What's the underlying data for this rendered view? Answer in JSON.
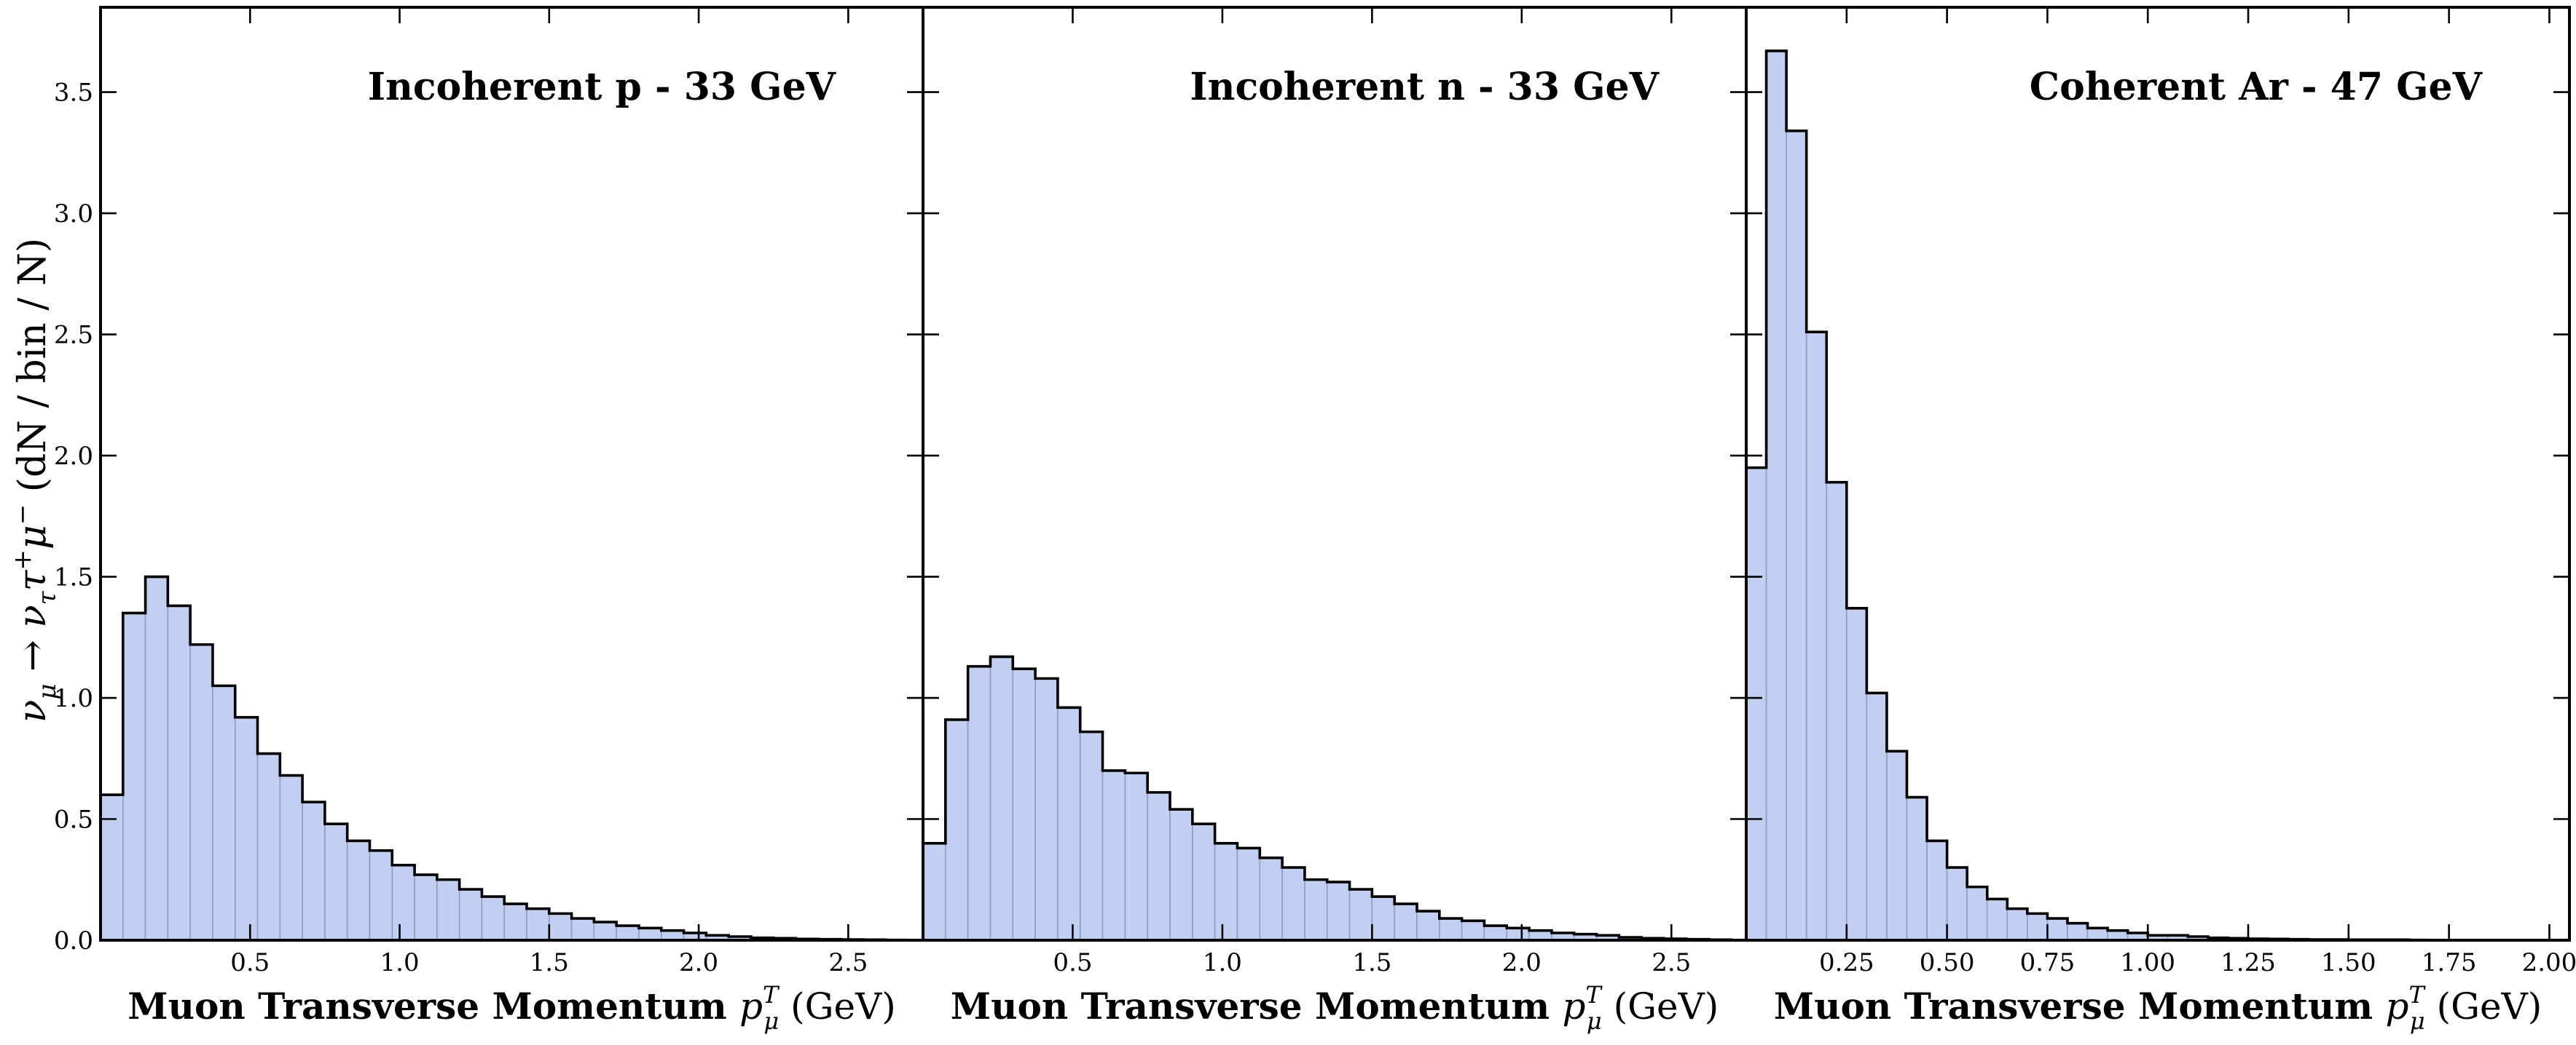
{
  "figure": {
    "ylabel_prefix": "ν",
    "ylabel_mu": "μ",
    "ylabel_arrow": " → ν",
    "ylabel_tau": "τ",
    "ylabel_tau_sup": "+",
    "ylabel_mu2": "μ",
    "ylabel_mu2_sup": "−",
    "ylabel_suffix": " (dN / bin / N)",
    "xlabel_bold": "Muon Transverse Momentum ",
    "xlabel_p": "p",
    "xlabel_sup": "T",
    "xlabel_sub": "μ",
    "xlabel_unit": " (GeV)"
  },
  "chart_data": [
    {
      "type": "bar",
      "title": "Incoherent p - 33 GeV",
      "xlabel": "Muon Transverse Momentum p_μ^T (GeV)",
      "ylabel": "ν_μ → ν_τ τ^+ μ^- (dN / bin / N)",
      "xlim": [
        0.0,
        2.75
      ],
      "ylim": [
        0.0,
        3.85
      ],
      "bin_width": 0.075,
      "x_ticks": [
        0.5,
        1.0,
        1.5,
        2.0,
        2.5
      ],
      "x_tick_labels": [
        "0.5",
        "1.0",
        "1.5",
        "2.0",
        "2.5"
      ],
      "y_ticks": [
        0.0,
        0.5,
        1.0,
        1.5,
        2.0,
        2.5,
        3.0,
        3.5
      ],
      "y_tick_labels": [
        "0.0",
        "0.5",
        "1.0",
        "1.5",
        "2.0",
        "2.5",
        "3.0",
        "3.5"
      ],
      "values": [
        0.6,
        1.35,
        1.5,
        1.38,
        1.22,
        1.05,
        0.92,
        0.77,
        0.68,
        0.57,
        0.48,
        0.41,
        0.37,
        0.31,
        0.27,
        0.25,
        0.21,
        0.18,
        0.15,
        0.13,
        0.11,
        0.09,
        0.075,
        0.06,
        0.05,
        0.04,
        0.03,
        0.02,
        0.015,
        0.01,
        0.008,
        0.005,
        0.004,
        0.003,
        0.002,
        0.001
      ]
    },
    {
      "type": "bar",
      "title": "Incoherent n - 33 GeV",
      "xlabel": "Muon Transverse Momentum p_μ^T (GeV)",
      "xlim": [
        0.0,
        2.75
      ],
      "ylim": [
        0.0,
        3.85
      ],
      "bin_width": 0.075,
      "x_ticks": [
        0.5,
        1.0,
        1.5,
        2.0,
        2.5
      ],
      "x_tick_labels": [
        "0.5",
        "1.0",
        "1.5",
        "2.0",
        "2.5"
      ],
      "y_ticks": [
        0.0,
        0.5,
        1.0,
        1.5,
        2.0,
        2.5,
        3.0,
        3.5
      ],
      "values": [
        0.4,
        0.91,
        1.13,
        1.17,
        1.12,
        1.08,
        0.96,
        0.86,
        0.7,
        0.69,
        0.61,
        0.54,
        0.48,
        0.4,
        0.38,
        0.34,
        0.3,
        0.25,
        0.24,
        0.21,
        0.18,
        0.15,
        0.12,
        0.09,
        0.08,
        0.06,
        0.05,
        0.04,
        0.03,
        0.025,
        0.02,
        0.012,
        0.008,
        0.006,
        0.004,
        0.002
      ]
    },
    {
      "type": "bar",
      "title": "Coherent Ar - 47 GeV",
      "xlabel": "Muon Transverse Momentum p_μ^T (GeV)",
      "xlim": [
        0.0,
        2.05
      ],
      "ylim": [
        0.0,
        3.85
      ],
      "bin_width": 0.05,
      "x_ticks": [
        0.25,
        0.5,
        0.75,
        1.0,
        1.25,
        1.5,
        1.75,
        2.0
      ],
      "x_tick_labels": [
        "0.25",
        "0.50",
        "0.75",
        "1.00",
        "1.25",
        "1.50",
        "1.75",
        "2.00"
      ],
      "y_ticks": [
        0.0,
        0.5,
        1.0,
        1.5,
        2.0,
        2.5,
        3.0,
        3.5
      ],
      "values": [
        1.95,
        3.67,
        3.34,
        2.51,
        1.89,
        1.37,
        1.02,
        0.78,
        0.59,
        0.41,
        0.3,
        0.22,
        0.17,
        0.13,
        0.11,
        0.09,
        0.07,
        0.05,
        0.04,
        0.03,
        0.02,
        0.02,
        0.015,
        0.01,
        0.008,
        0.006,
        0.005,
        0.004,
        0.003,
        0.003,
        0.002,
        0.002,
        0.002,
        0.001
      ]
    }
  ]
}
